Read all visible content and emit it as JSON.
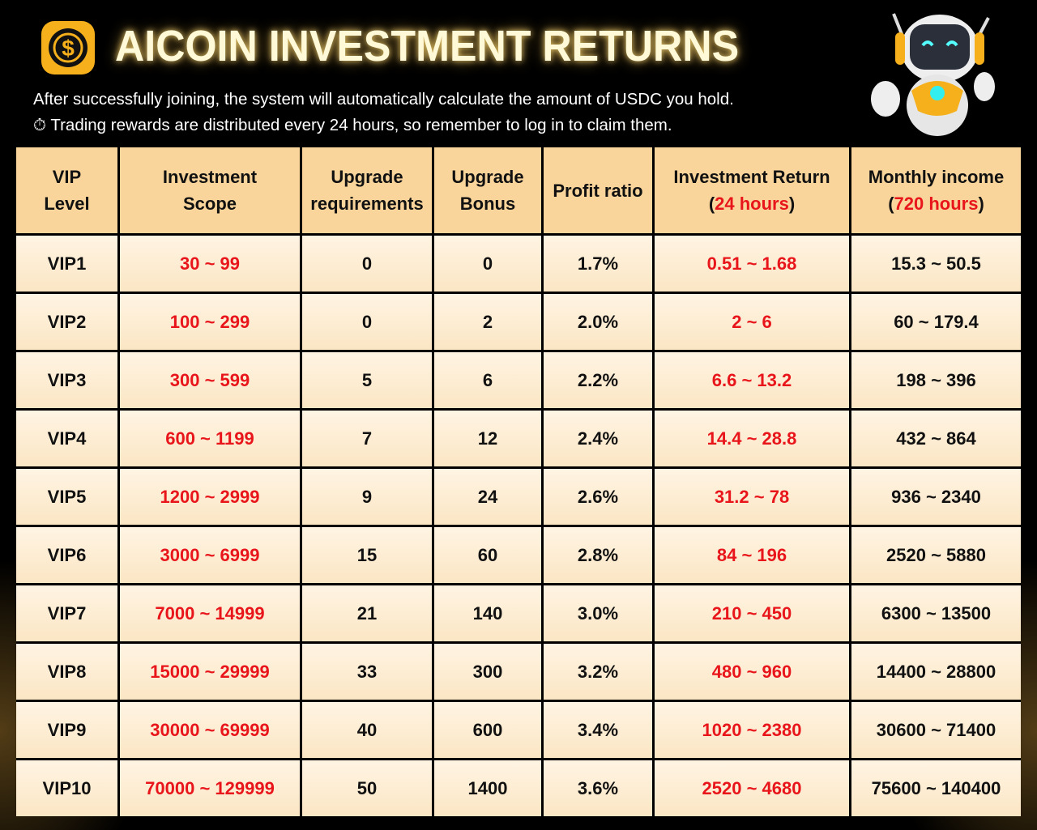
{
  "header": {
    "title": "AICOIN INVESTMENT RETURNS",
    "subtitle_line1": "After successfully joining, the system will automatically calculate the amount of USDC you hold.",
    "subtitle_line2_icon": "stopwatch-icon",
    "subtitle_line2": "Trading rewards are distributed every 24 hours, so remember to log in to claim them."
  },
  "colors": {
    "accent_red": "#e8151b",
    "header_cell": "#f9d59b",
    "body_cell": "#fdecd2",
    "gold": "#f5b01c"
  },
  "table": {
    "columns": [
      {
        "line1": "VIP",
        "line2": "Level"
      },
      {
        "line1": "Investment",
        "line2": "Scope"
      },
      {
        "line1": "Upgrade",
        "line2": "requirements"
      },
      {
        "line1": "Upgrade",
        "line2": "Bonus"
      },
      {
        "line1": "Profit ratio",
        "line2": ""
      },
      {
        "line1": "Investment Return",
        "line2_open": "(",
        "line2_red": "24 hours",
        "line2_close": ")"
      },
      {
        "line1": "Monthly income",
        "line2_open": "(",
        "line2_red": "720 hours",
        "line2_close": ")"
      }
    ],
    "rows": [
      [
        "VIP1",
        "30 ~ 99",
        "0",
        "0",
        "1.7%",
        "0.51 ~ 1.68",
        "15.3 ~ 50.5"
      ],
      [
        "VIP2",
        "100 ~ 299",
        "0",
        "2",
        "2.0%",
        "2 ~ 6",
        "60 ~ 179.4"
      ],
      [
        "VIP3",
        "300 ~ 599",
        "5",
        "6",
        "2.2%",
        "6.6 ~ 13.2",
        "198 ~ 396"
      ],
      [
        "VIP4",
        "600 ~ 1199",
        "7",
        "12",
        "2.4%",
        "14.4 ~ 28.8",
        "432 ~ 864"
      ],
      [
        "VIP5",
        "1200 ~ 2999",
        "9",
        "24",
        "2.6%",
        "31.2 ~ 78",
        "936 ~ 2340"
      ],
      [
        "VIP6",
        "3000 ~ 6999",
        "15",
        "60",
        "2.8%",
        "84 ~ 196",
        "2520 ~ 5880"
      ],
      [
        "VIP7",
        "7000 ~ 14999",
        "21",
        "140",
        "3.0%",
        "210 ~ 450",
        "6300 ~ 13500"
      ],
      [
        "VIP8",
        "15000 ~ 29999",
        "33",
        "300",
        "3.2%",
        "480 ~ 960",
        "14400 ~ 28800"
      ],
      [
        "VIP9",
        "30000 ~ 69999",
        "40",
        "600",
        "3.4%",
        "1020 ~ 2380",
        "30600 ~ 71400"
      ],
      [
        "VIP10",
        "70000 ~ 129999",
        "50",
        "1400",
        "3.6%",
        "2520 ~ 4680",
        "75600 ~ 140400"
      ]
    ]
  }
}
